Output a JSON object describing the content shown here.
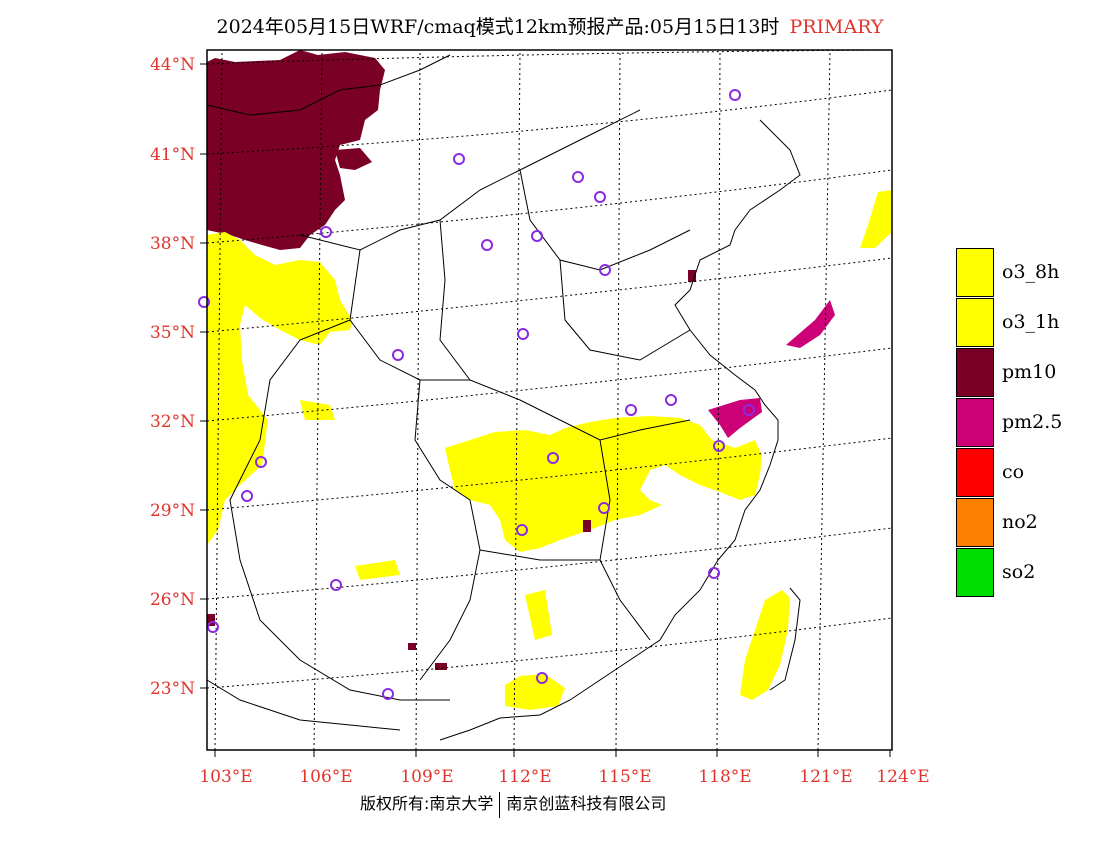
{
  "header": {
    "title": "2024年05月15日WRF/cmaq模式12km预报产品:05月15日13时",
    "status": "PRIMARY",
    "status_color": "#e0342c"
  },
  "axes": {
    "lat_labels": [
      "44°N",
      "41°N",
      "38°N",
      "35°N",
      "32°N",
      "29°N",
      "26°N",
      "23°N"
    ],
    "lon_labels": [
      "103°E",
      "106°E",
      "109°E",
      "112°E",
      "115°E",
      "118°E",
      "121°E",
      "124°E"
    ],
    "label_color": "#e0342c"
  },
  "legend": {
    "items": [
      {
        "label": "o3_8h",
        "color": "#ffff00"
      },
      {
        "label": "o3_1h",
        "color": "#ffff00"
      },
      {
        "label": "pm10",
        "color": "#7a0026"
      },
      {
        "label": "pm2.5",
        "color": "#cc0077"
      },
      {
        "label": "co",
        "color": "#ff0000"
      },
      {
        "label": "no2",
        "color": "#ff7f00"
      },
      {
        "label": "so2",
        "color": "#00dd00"
      }
    ]
  },
  "map": {
    "station_marker": "circle-icon",
    "station_color": "#8a2be2",
    "pollution_colors": {
      "o3": "#ffff00",
      "pm10": "#7a0026",
      "pm25": "#cc0077"
    }
  },
  "footer": {
    "copyright": "版权所有:南京大学",
    "company": "南京创蓝科技有限公司"
  }
}
